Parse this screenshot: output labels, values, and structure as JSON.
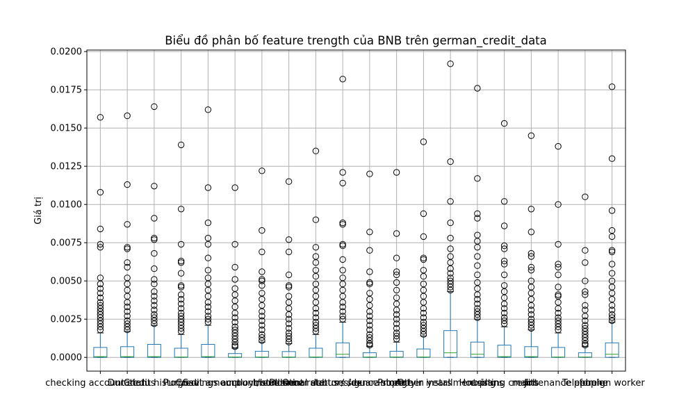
{
  "chart_data": {
    "type": "box",
    "title": "Biểu đồ phân bố feature trength của BNB trên german_credit_data",
    "xlabel": "",
    "ylabel": "Giá trị",
    "ylim": [
      -0.0009,
      0.0201
    ],
    "yticks": [
      "0.0000",
      "0.0025",
      "0.0050",
      "0.0075",
      "0.0100",
      "0.0125",
      "0.0150",
      "0.0175",
      "0.0200"
    ],
    "grid": true,
    "colors": {
      "box": "#1f77b4",
      "median": "#2ca02c",
      "flier": "#000000",
      "grid": "#b0b0b0"
    },
    "categories": [
      "checking account status",
      "Duration",
      "Credit history",
      "Purpose",
      "Credit amount",
      "Savings account/bonds",
      "employment since",
      "Installment rate",
      "Personal status / sex",
      "Other debtors / guarantors",
      "residence since",
      "Property",
      "Age in years",
      "Other installment plans",
      "Housing",
      "existing credits",
      "Job",
      "maintenance people",
      "Telephone",
      "foreign worker"
    ],
    "boxes": [
      {
        "q1": 0,
        "median": 5e-05,
        "q3": 0.00065,
        "whislo": 0,
        "whishi": 0.0016,
        "fliers": [
          0.0157,
          0.0108,
          0.0084,
          0.0074,
          0.0072,
          0.0052,
          0.0048,
          0.0045,
          0.0042,
          0.0039,
          0.0036,
          0.0034,
          0.0032,
          0.003,
          0.0028,
          0.0026,
          0.0024,
          0.0022,
          0.002,
          0.0018
        ]
      },
      {
        "q1": 0,
        "median": 5e-05,
        "q3": 0.0007,
        "whislo": 0,
        "whishi": 0.0017,
        "fliers": [
          0.0158,
          0.0113,
          0.0087,
          0.0072,
          0.0071,
          0.0062,
          0.0059,
          0.0052,
          0.0048,
          0.0044,
          0.004,
          0.0036,
          0.0033,
          0.003,
          0.0027,
          0.0024,
          0.0022,
          0.002,
          0.0018
        ]
      },
      {
        "q1": 0,
        "median": 5e-05,
        "q3": 0.00085,
        "whislo": 0,
        "whishi": 0.0021,
        "fliers": [
          0.0164,
          0.0112,
          0.0091,
          0.0078,
          0.0077,
          0.0068,
          0.0058,
          0.0051,
          0.0048,
          0.0043,
          0.004,
          0.0037,
          0.0034,
          0.0031,
          0.0028,
          0.0026,
          0.0024,
          0.0022
        ]
      },
      {
        "q1": 0,
        "median": 2e-05,
        "q3": 0.0006,
        "whislo": 0,
        "whishi": 0.0015,
        "fliers": [
          0.0139,
          0.0097,
          0.0074,
          0.0063,
          0.0062,
          0.0055,
          0.0047,
          0.0046,
          0.0041,
          0.0038,
          0.0035,
          0.0032,
          0.0029,
          0.0027,
          0.0025,
          0.0023,
          0.0021,
          0.0019,
          0.0017
        ]
      },
      {
        "q1": 0,
        "median": 5e-05,
        "q3": 0.00085,
        "whislo": 0,
        "whishi": 0.0021,
        "fliers": [
          0.0162,
          0.0111,
          0.0088,
          0.0078,
          0.0074,
          0.0065,
          0.0057,
          0.0052,
          0.0048,
          0.0044,
          0.004,
          0.0036,
          0.0033,
          0.003,
          0.0027,
          0.0025,
          0.0023
        ]
      },
      {
        "q1": 0,
        "median": 2e-05,
        "q3": 0.00025,
        "whislo": 0,
        "whishi": 0.0006,
        "fliers": [
          0.0111,
          0.0074,
          0.0059,
          0.0051,
          0.0045,
          0.0041,
          0.0037,
          0.0033,
          0.0029,
          0.0026,
          0.0023,
          0.002,
          0.0018,
          0.0016,
          0.0014,
          0.0012,
          0.001,
          0.0008,
          0.0007
        ]
      },
      {
        "q1": 0,
        "median": 2e-05,
        "q3": 0.0004,
        "whislo": 0,
        "whishi": 0.001,
        "fliers": [
          0.0122,
          0.0083,
          0.0069,
          0.0056,
          0.0051,
          0.005,
          0.0047,
          0.0042,
          0.0038,
          0.0034,
          0.003,
          0.0027,
          0.0024,
          0.0021,
          0.0018,
          0.0015,
          0.0013,
          0.0011
        ]
      },
      {
        "q1": 0,
        "median": 2e-05,
        "q3": 0.00038,
        "whislo": 0,
        "whishi": 0.0009,
        "fliers": [
          0.0115,
          0.0077,
          0.0069,
          0.0054,
          0.0047,
          0.0046,
          0.004,
          0.0036,
          0.0032,
          0.0028,
          0.0025,
          0.0022,
          0.0019,
          0.0016,
          0.0014,
          0.0012,
          0.001
        ]
      },
      {
        "q1": 0,
        "median": 2e-05,
        "q3": 0.0006,
        "whislo": 0,
        "whishi": 0.0015,
        "fliers": [
          0.0135,
          0.009,
          0.0072,
          0.0066,
          0.0062,
          0.0057,
          0.0053,
          0.0048,
          0.0044,
          0.004,
          0.0036,
          0.0032,
          0.0029,
          0.0026,
          0.0023,
          0.0021,
          0.0019,
          0.0017
        ]
      },
      {
        "q1": 0,
        "median": 0.0002,
        "q3": 0.00095,
        "whislo": 0,
        "whishi": 0.0023,
        "fliers": [
          0.0182,
          0.0121,
          0.0114,
          0.0088,
          0.0087,
          0.0074,
          0.0073,
          0.0064,
          0.0057,
          0.0052,
          0.0048,
          0.0044,
          0.004,
          0.0036,
          0.0033,
          0.003,
          0.0027,
          0.0025
        ]
      },
      {
        "q1": 0,
        "median": 2e-05,
        "q3": 0.0003,
        "whislo": 0,
        "whishi": 0.0007,
        "fliers": [
          0.012,
          0.0082,
          0.007,
          0.0056,
          0.0049,
          0.0048,
          0.0042,
          0.0038,
          0.0034,
          0.003,
          0.0027,
          0.0024,
          0.0021,
          0.0018,
          0.0015,
          0.0013,
          0.0011,
          0.0009,
          0.0008
        ]
      },
      {
        "q1": 0,
        "median": 2e-05,
        "q3": 0.0004,
        "whislo": 0,
        "whishi": 0.001,
        "fliers": [
          0.0121,
          0.0081,
          0.0065,
          0.0056,
          0.0054,
          0.0049,
          0.0044,
          0.0039,
          0.0035,
          0.0031,
          0.0028,
          0.0025,
          0.0022,
          0.0019,
          0.0016,
          0.0014,
          0.0012
        ]
      },
      {
        "q1": 0,
        "median": 2e-05,
        "q3": 0.00055,
        "whislo": 0,
        "whishi": 0.0014,
        "fliers": [
          0.0141,
          0.0094,
          0.0079,
          0.0065,
          0.0064,
          0.0057,
          0.0053,
          0.0048,
          0.0044,
          0.004,
          0.0036,
          0.0032,
          0.0029,
          0.0026,
          0.0023,
          0.0021,
          0.0019,
          0.0017,
          0.0015
        ]
      },
      {
        "q1": 0,
        "median": 0.0003,
        "q3": 0.00175,
        "whislo": 0,
        "whishi": 0.0043,
        "fliers": [
          0.0192,
          0.0128,
          0.0102,
          0.0088,
          0.0078,
          0.0071,
          0.0066,
          0.0062,
          0.0058,
          0.0055,
          0.0052,
          0.005,
          0.0048,
          0.0046,
          0.0044
        ]
      },
      {
        "q1": 0,
        "median": 0.0002,
        "q3": 0.001,
        "whislo": 0,
        "whishi": 0.0025,
        "fliers": [
          0.0176,
          0.0117,
          0.0094,
          0.0091,
          0.008,
          0.0076,
          0.0072,
          0.0066,
          0.006,
          0.0054,
          0.0049,
          0.0045,
          0.0041,
          0.0038,
          0.0035,
          0.0032,
          0.003,
          0.0028,
          0.0026
        ]
      },
      {
        "q1": 0,
        "median": 5e-05,
        "q3": 0.0008,
        "whislo": 0,
        "whishi": 0.002,
        "fliers": [
          0.0153,
          0.0102,
          0.0086,
          0.0073,
          0.0071,
          0.0063,
          0.0061,
          0.0054,
          0.0047,
          0.0043,
          0.0039,
          0.0035,
          0.0032,
          0.0029,
          0.0026,
          0.0024,
          0.0022
        ]
      },
      {
        "q1": 0,
        "median": 5e-05,
        "q3": 0.0007,
        "whislo": 0,
        "whishi": 0.0018,
        "fliers": [
          0.0145,
          0.0097,
          0.0082,
          0.0068,
          0.0066,
          0.0059,
          0.0057,
          0.005,
          0.0046,
          0.0042,
          0.0038,
          0.0034,
          0.0031,
          0.0028,
          0.0025,
          0.0023,
          0.0021,
          0.0019
        ]
      },
      {
        "q1": 0,
        "median": 2e-05,
        "q3": 0.00065,
        "whislo": 0,
        "whishi": 0.0016,
        "fliers": [
          0.0138,
          0.01,
          0.0074,
          0.0061,
          0.0059,
          0.0054,
          0.0046,
          0.0041,
          0.004,
          0.0036,
          0.0032,
          0.0029,
          0.0026,
          0.0024,
          0.0022,
          0.002,
          0.0018
        ]
      },
      {
        "q1": 0,
        "median": 2e-05,
        "q3": 0.0003,
        "whislo": 0,
        "whishi": 0.0007,
        "fliers": [
          0.0105,
          0.007,
          0.0062,
          0.005,
          0.0043,
          0.0041,
          0.0034,
          0.0031,
          0.0027,
          0.0024,
          0.0021,
          0.0019,
          0.0017,
          0.0015,
          0.0013,
          0.0011,
          0.0009,
          0.0008
        ]
      },
      {
        "q1": 0,
        "median": 0.0002,
        "q3": 0.00095,
        "whislo": 0,
        "whishi": 0.0023,
        "fliers": [
          0.0177,
          0.013,
          0.0096,
          0.0083,
          0.0079,
          0.007,
          0.0069,
          0.0061,
          0.0055,
          0.005,
          0.0046,
          0.0042,
          0.0038,
          0.0034,
          0.0031,
          0.0028,
          0.0026,
          0.0024
        ]
      }
    ]
  }
}
